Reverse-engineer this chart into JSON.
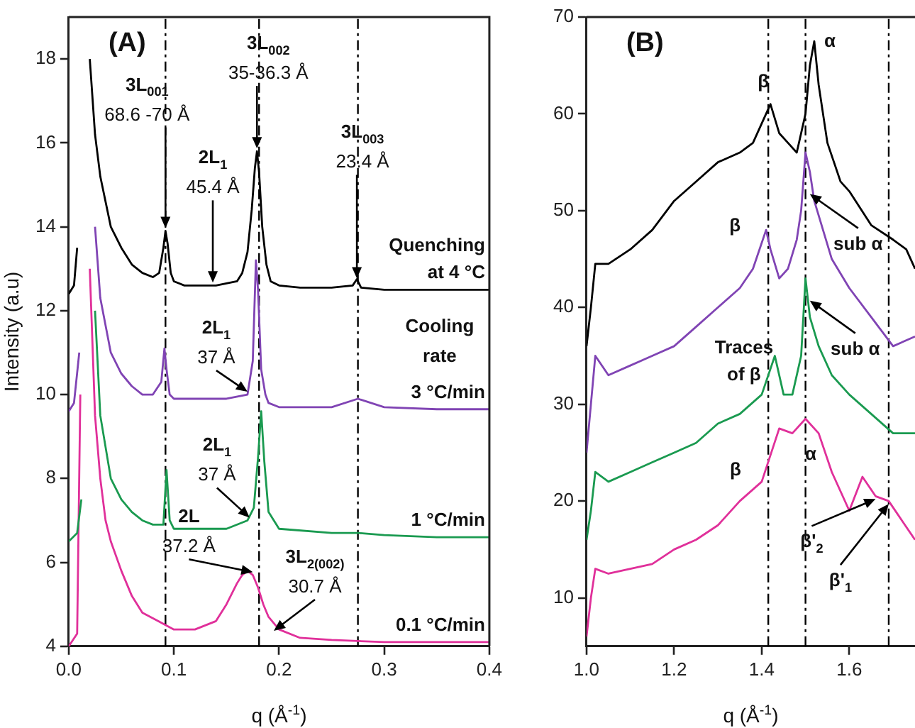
{
  "chart_data": [
    {
      "type": "line",
      "title": "(A)",
      "xlabel": "q (Å$^{-1}$)",
      "ylabel": "Intensity (a.u)",
      "xlim": [
        0,
        0.4
      ],
      "ylim": [
        4,
        19
      ],
      "xticks": [
        {
          "value": 0,
          "label": "0.0"
        },
        0.1,
        0.2,
        0.3,
        0.4
      ],
      "yticks": [
        4,
        6,
        8,
        10,
        12,
        14,
        16,
        18
      ],
      "grid": false,
      "legend": false,
      "marker": "none",
      "line_style": "solid",
      "series": [
        {
          "name": "Quenching\nat 4 °C",
          "color": "#000000",
          "x": [
            0,
            0.005,
            0.008,
            0.01,
            0.012,
            0.015,
            0.02,
            0.025,
            0.03,
            0.04,
            0.05,
            0.06,
            0.07,
            0.08,
            0.086,
            0.09,
            0.092,
            0.094,
            0.097,
            0.1,
            0.11,
            0.12,
            0.14,
            0.16,
            0.165,
            0.17,
            0.174,
            0.177,
            0.179,
            0.181,
            0.184,
            0.188,
            0.192,
            0.2,
            0.22,
            0.25,
            0.27,
            0.274,
            0.278,
            0.3,
            0.35,
            0.4
          ],
          "values": [
            12.4,
            12.6,
            13.5,
            null,
            null,
            null,
            18,
            16.2,
            15.2,
            14,
            13.5,
            13.1,
            12.9,
            12.8,
            12.9,
            13.5,
            13.9,
            13.6,
            12.9,
            12.7,
            12.6,
            12.6,
            12.6,
            12.7,
            12.9,
            13.4,
            14.4,
            15.4,
            15.8,
            15.3,
            14,
            13.1,
            12.7,
            12.6,
            12.55,
            12.55,
            12.6,
            12.75,
            12.55,
            12.5,
            12.5,
            12.5
          ]
        },
        {
          "name": "3 °C/min",
          "color": "#8044b4",
          "x": [
            0,
            0.005,
            0.01,
            0.013,
            0.016,
            0.02,
            0.025,
            0.03,
            0.04,
            0.05,
            0.06,
            0.07,
            0.08,
            0.088,
            0.091,
            0.093,
            0.096,
            0.1,
            0.12,
            0.15,
            0.17,
            0.175,
            0.178,
            0.18,
            0.183,
            0.187,
            0.19,
            0.2,
            0.25,
            0.275,
            0.3,
            0.35,
            0.4
          ],
          "values": [
            9.6,
            9.8,
            11,
            null,
            null,
            null,
            14,
            12.3,
            11,
            10.5,
            10.2,
            10,
            10,
            10.3,
            11.1,
            10.6,
            10,
            9.9,
            9.9,
            9.9,
            10,
            10.8,
            13.2,
            12.5,
            10.6,
            10,
            9.8,
            9.7,
            9.7,
            9.9,
            9.7,
            9.65,
            9.65
          ]
        },
        {
          "name": "1 °C/min",
          "color": "#1a9a50",
          "x": [
            0,
            0.008,
            0.012,
            0.015,
            0.018,
            0.022,
            0.025,
            0.03,
            0.04,
            0.05,
            0.06,
            0.07,
            0.08,
            0.09,
            0.093,
            0.096,
            0.1,
            0.12,
            0.15,
            0.17,
            0.176,
            0.18,
            0.183,
            0.186,
            0.19,
            0.2,
            0.25,
            0.275,
            0.3,
            0.35,
            0.4
          ],
          "values": [
            6.5,
            6.7,
            7.5,
            null,
            null,
            null,
            12,
            9.5,
            8,
            7.5,
            7.2,
            7,
            6.9,
            6.9,
            8.2,
            7,
            6.8,
            6.8,
            6.8,
            7,
            7.3,
            8.5,
            9.6,
            8.4,
            7.2,
            6.8,
            6.7,
            6.7,
            6.65,
            6.6,
            6.6
          ]
        },
        {
          "name": "0.1 °C/min",
          "color": "#e0309a",
          "x": [
            0,
            0.008,
            0.011,
            0.013,
            0.016,
            0.02,
            0.025,
            0.03,
            0.035,
            0.04,
            0.05,
            0.06,
            0.07,
            0.085,
            0.1,
            0.12,
            0.14,
            0.15,
            0.16,
            0.165,
            0.17,
            0.175,
            0.18,
            0.185,
            0.19,
            0.2,
            0.22,
            0.25,
            0.3,
            0.35,
            0.4
          ],
          "values": [
            4,
            4.3,
            10,
            null,
            null,
            13,
            9.5,
            8,
            7,
            6.5,
            5.8,
            5.2,
            4.8,
            4.6,
            4.4,
            4.4,
            4.6,
            5,
            5.5,
            5.7,
            5.8,
            5.7,
            5.4,
            5,
            4.7,
            4.4,
            4.2,
            4.15,
            4.1,
            4.1,
            4.1
          ]
        }
      ],
      "ref_lines": [
        {
          "axis": "x",
          "value": 0.092,
          "color": "#000000",
          "line_style": "dashed"
        },
        {
          "axis": "x",
          "value": 0.181,
          "color": "#000000",
          "line_style": "dashed"
        },
        {
          "axis": "x",
          "value": 0.275,
          "color": "#000000",
          "line_style": "dashed"
        }
      ],
      "annotations": [
        {
          "text": "3L$_{001}$\n68.6 -70 Å",
          "x": 0.092,
          "y": 13.9
        },
        {
          "text": "3L$_{002}$\n35-36.3 Å",
          "x": 0.179,
          "y": 15.8
        },
        {
          "text": "2L$_{1}$\n45.4 Å",
          "x": 0.137,
          "y": 12.6
        },
        {
          "text": "3L$_{003}$\n23.4 Å",
          "x": 0.274,
          "y": 12.7
        },
        {
          "text": "2L$_{1}$\n37 Å",
          "x": 0.17,
          "y": 10
        },
        {
          "text": "2L$_{1}$\n37 Å",
          "x": 0.172,
          "y": 7
        },
        {
          "text": "2L\n37.2 Å",
          "x": 0.175,
          "y": 5.7
        },
        {
          "text": "3L$_{2(002)}$\n30.7 Å",
          "x": 0.195,
          "y": 4.3
        },
        "Cooling\nrate"
      ]
    },
    {
      "type": "line",
      "title": "(B)",
      "xlabel": "q (Å$^{-1}$)",
      "xlim": [
        1,
        1.75
      ],
      "ylim": [
        5,
        70
      ],
      "xticks": [
        {
          "value": 1,
          "label": "1.0"
        },
        1.2,
        1.4,
        1.6
      ],
      "yticks": [
        10,
        20,
        30,
        40,
        50,
        60,
        70
      ],
      "grid": false,
      "legend": false,
      "marker": "none",
      "line_style": "solid",
      "series": [
        {
          "color": "#000000",
          "x": [
            1,
            1.01,
            1.02,
            1.05,
            1.1,
            1.15,
            1.2,
            1.25,
            1.3,
            1.35,
            1.38,
            1.41,
            1.42,
            1.44,
            1.46,
            1.48,
            1.5,
            1.51,
            1.52,
            1.53,
            1.55,
            1.58,
            1.6,
            1.65,
            1.7,
            1.73,
            1.75
          ],
          "values": [
            36,
            40,
            44.5,
            44.5,
            46,
            48,
            51,
            53,
            55,
            56,
            57,
            60,
            61,
            58,
            57,
            56,
            60,
            65,
            67.5,
            63,
            57,
            53,
            52,
            48.5,
            47,
            46,
            44
          ]
        },
        {
          "color": "#8044b4",
          "x": [
            1,
            1.01,
            1.02,
            1.05,
            1.1,
            1.15,
            1.2,
            1.25,
            1.3,
            1.35,
            1.38,
            1.41,
            1.42,
            1.44,
            1.46,
            1.48,
            1.49,
            1.5,
            1.51,
            1.52,
            1.54,
            1.56,
            1.6,
            1.65,
            1.7,
            1.75
          ],
          "values": [
            25,
            30,
            35,
            33,
            34,
            35,
            36,
            38,
            40,
            42,
            44,
            48,
            46,
            43,
            44,
            47,
            50,
            56,
            54,
            51,
            48,
            45,
            42,
            39,
            36,
            37
          ]
        },
        {
          "color": "#1a9a50",
          "x": [
            1,
            1.01,
            1.02,
            1.05,
            1.1,
            1.15,
            1.2,
            1.25,
            1.3,
            1.35,
            1.4,
            1.43,
            1.45,
            1.47,
            1.49,
            1.5,
            1.51,
            1.53,
            1.56,
            1.6,
            1.65,
            1.7,
            1.75
          ],
          "values": [
            16,
            19,
            23,
            22,
            23,
            24,
            25,
            26,
            28,
            29,
            31,
            35,
            31,
            31,
            35,
            43,
            39,
            36,
            33,
            31,
            29,
            27,
            27
          ]
        },
        {
          "color": "#e0309a",
          "x": [
            1,
            1.01,
            1.02,
            1.05,
            1.1,
            1.15,
            1.2,
            1.25,
            1.3,
            1.35,
            1.4,
            1.44,
            1.47,
            1.5,
            1.53,
            1.56,
            1.6,
            1.63,
            1.66,
            1.69,
            1.72,
            1.75
          ],
          "values": [
            6,
            10,
            13,
            12.5,
            13,
            13.5,
            15,
            16,
            17.5,
            20,
            22,
            27.5,
            27,
            28.5,
            27,
            23,
            19,
            22.5,
            20.5,
            20,
            18,
            16
          ]
        }
      ],
      "ref_lines": [
        {
          "axis": "x",
          "value": 1.415,
          "color": "#000000",
          "line_style": "dashed"
        },
        {
          "axis": "x",
          "value": 1.5,
          "color": "#000000",
          "line_style": "dashed"
        },
        {
          "axis": "x",
          "value": 1.69,
          "color": "#000000",
          "line_style": "dashed"
        }
      ],
      "annotations": [
        {
          "text": "α",
          "x": 1.52,
          "y": 67.5
        },
        {
          "text": "β",
          "x": 1.42,
          "y": 61
        },
        {
          "text": "β",
          "x": 1.41,
          "y": 48
        },
        {
          "text": "sub α",
          "x": 1.51,
          "y": 52
        },
        {
          "text": "sub α",
          "x": 1.51,
          "y": 41
        },
        "Traces\nof β",
        "β",
        "α",
        {
          "text": "β'$_{2}$",
          "x": 1.66,
          "y": 20.5
        },
        {
          "text": "β'$_{1}$",
          "x": 1.69,
          "y": 20
        }
      ]
    }
  ]
}
